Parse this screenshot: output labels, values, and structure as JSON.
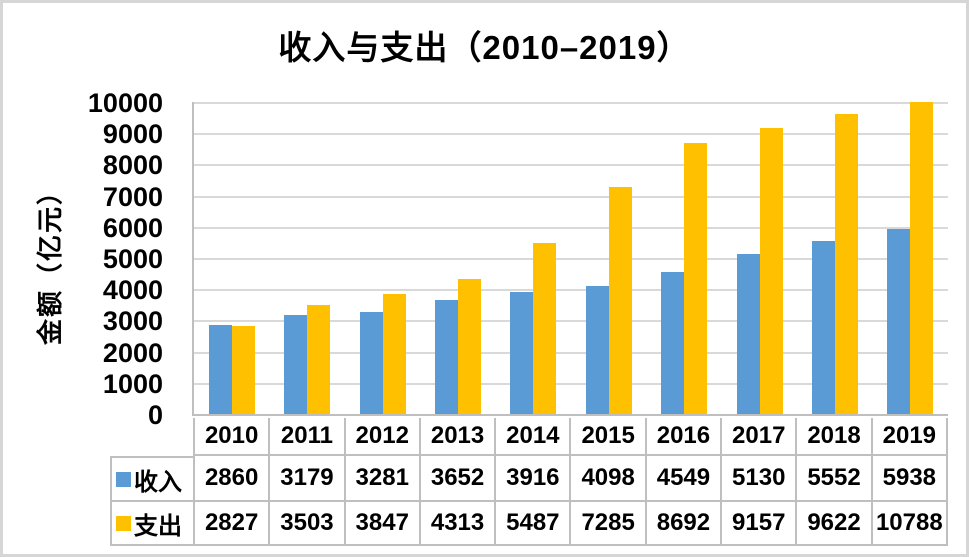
{
  "chart_data": {
    "type": "bar",
    "title": "收入与支出（2010–2019）",
    "ylabel": "金额（亿元）",
    "xlabel": "",
    "categories": [
      "2010",
      "2011",
      "2012",
      "2013",
      "2014",
      "2015",
      "2016",
      "2017",
      "2018",
      "2019"
    ],
    "series": [
      {
        "key": "income",
        "name": "收入",
        "color": "#5B9BD5",
        "values": [
          2860,
          3179,
          3281,
          3652,
          3916,
          4098,
          4549,
          5130,
          5552,
          5938
        ]
      },
      {
        "key": "expense",
        "name": "支出",
        "color": "#FFC000",
        "values": [
          2827,
          3503,
          3847,
          4313,
          5487,
          7285,
          8692,
          9157,
          9622,
          10788
        ]
      }
    ],
    "ylim": [
      0,
      10000
    ],
    "yticks": [
      0,
      1000,
      2000,
      3000,
      4000,
      5000,
      6000,
      7000,
      8000,
      9000,
      10000
    ],
    "grid": true,
    "gridline_color": "#D9D9D9",
    "axis_line_color": "#BFBFBF",
    "table_border_color": "#BFBFBF",
    "legend_position": "data-table-left",
    "data_table_shown": true,
    "note": "2019 支出 bar (10788) is clipped at axis max 10000"
  }
}
